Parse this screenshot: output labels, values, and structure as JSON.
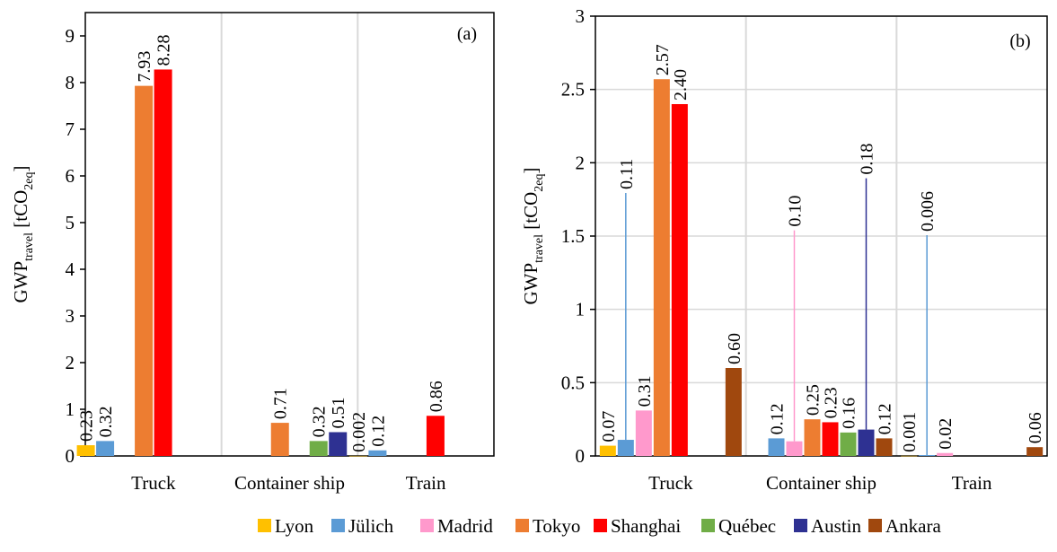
{
  "legend": [
    {
      "name": "Lyon",
      "color": "#FFC000"
    },
    {
      "name": "Jülich",
      "color": "#5B9BD5"
    },
    {
      "name": "Madrid",
      "color": "#FF99CC"
    },
    {
      "name": "Tokyo",
      "color": "#ED7D31"
    },
    {
      "name": "Shanghai",
      "color": "#FF0000"
    },
    {
      "name": "Québec",
      "color": "#70AD47"
    },
    {
      "name": "Austin",
      "color": "#2E3192"
    },
    {
      "name": "Ankara",
      "color": "#A0480E"
    }
  ],
  "chart_data": [
    {
      "type": "bar",
      "panel_label": "(a)",
      "ylabel_main": "GWP",
      "ylabel_sub": "travel",
      "ylabel_unit_open": " [tCO",
      "ylabel_unit_sub": "2eq",
      "ylabel_unit_close": "]",
      "ylim": [
        0,
        9.5
      ],
      "yticks": [
        "0",
        "1",
        "2",
        "3",
        "4",
        "5",
        "6",
        "7",
        "8",
        "9"
      ],
      "categories": [
        "Truck",
        "Container ship",
        "Train"
      ],
      "grid": "vertical",
      "series": [
        {
          "name": "Lyon",
          "values": [
            0.23,
            null,
            0.002
          ],
          "labels": [
            "0.23",
            "",
            "0.002"
          ]
        },
        {
          "name": "Jülich",
          "values": [
            0.32,
            null,
            0.12
          ],
          "labels": [
            "0.32",
            "",
            "0.12"
          ]
        },
        {
          "name": "Madrid",
          "values": [
            null,
            null,
            null
          ],
          "labels": [
            "",
            "",
            ""
          ]
        },
        {
          "name": "Tokyo",
          "values": [
            7.93,
            0.71,
            null
          ],
          "labels": [
            "7.93",
            "0.71",
            ""
          ]
        },
        {
          "name": "Shanghai",
          "values": [
            8.28,
            null,
            0.86
          ],
          "labels": [
            "8.28",
            "",
            "0.86"
          ]
        },
        {
          "name": "Québec",
          "values": [
            null,
            0.32,
            null
          ],
          "labels": [
            "",
            "0.32",
            ""
          ]
        },
        {
          "name": "Austin",
          "values": [
            null,
            0.51,
            null
          ],
          "labels": [
            "",
            "0.51",
            ""
          ]
        },
        {
          "name": "Ankara",
          "values": [
            null,
            null,
            null
          ],
          "labels": [
            "",
            "",
            ""
          ]
        }
      ]
    },
    {
      "type": "bar",
      "panel_label": "(b)",
      "ylabel_main": "GWP",
      "ylabel_sub": "travel",
      "ylabel_unit_open": " [tCO",
      "ylabel_unit_sub": "2eq",
      "ylabel_unit_close": "]",
      "ylim": [
        0,
        3
      ],
      "yticks": [
        "0",
        "0.5",
        "1",
        "1.5",
        "2",
        "2.5",
        "3"
      ],
      "categories": [
        "Truck",
        "Container ship",
        "Train"
      ],
      "grid": "both",
      "series": [
        {
          "name": "Lyon",
          "values": [
            0.07,
            null,
            0.001
          ],
          "labels": [
            "0.07",
            "",
            "0.001"
          ]
        },
        {
          "name": "Jülich",
          "values": [
            0.11,
            0.12,
            0.006
          ],
          "labels": [
            "0.11",
            "0.12",
            "0.006"
          ]
        },
        {
          "name": "Madrid",
          "values": [
            0.31,
            0.1,
            0.02
          ],
          "labels": [
            "0.31",
            "0.10",
            "0.02"
          ]
        },
        {
          "name": "Tokyo",
          "values": [
            2.57,
            0.25,
            null
          ],
          "labels": [
            "2.57",
            "0.25",
            ""
          ]
        },
        {
          "name": "Shanghai",
          "values": [
            2.4,
            0.23,
            null
          ],
          "labels": [
            "2.40",
            "0.23",
            ""
          ]
        },
        {
          "name": "Québec",
          "values": [
            null,
            0.16,
            null
          ],
          "labels": [
            "",
            "0.16",
            ""
          ]
        },
        {
          "name": "Austin",
          "values": [
            null,
            0.18,
            null
          ],
          "labels": [
            "",
            "0.18",
            ""
          ]
        },
        {
          "name": "Ankara",
          "values": [
            0.6,
            0.12,
            0.06
          ],
          "labels": [
            "0.60",
            "0.12",
            "0.06"
          ]
        }
      ]
    }
  ]
}
